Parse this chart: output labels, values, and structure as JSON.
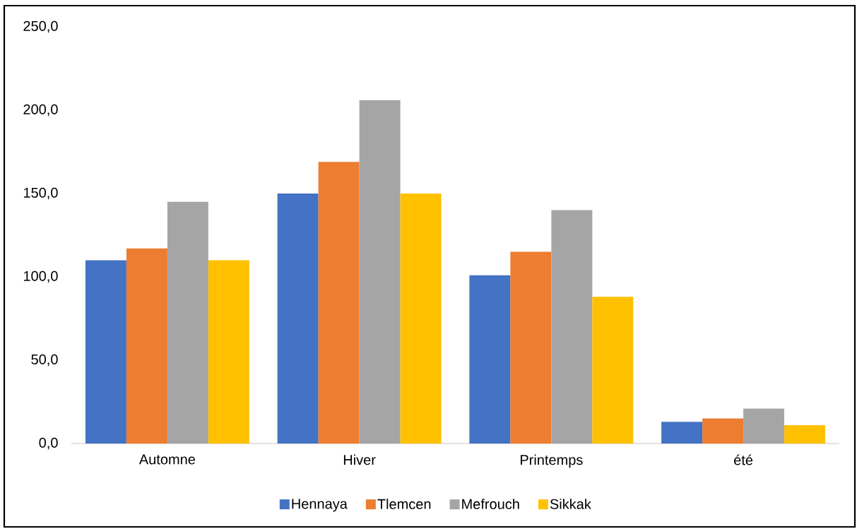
{
  "chart_data": {
    "type": "bar",
    "categories": [
      "Automne",
      "Hiver",
      "Printemps",
      "été"
    ],
    "series": [
      {
        "name": "Hennaya",
        "color": "#4472c4",
        "values": [
          110,
          150,
          101,
          13
        ]
      },
      {
        "name": "Tlemcen",
        "color": "#ed7d31",
        "values": [
          117,
          169,
          115,
          15
        ]
      },
      {
        "name": "Mefrouch",
        "color": "#a5a5a5",
        "values": [
          145,
          206,
          140,
          21
        ]
      },
      {
        "name": "Sikkak",
        "color": "#ffc000",
        "values": [
          110,
          150,
          88,
          11
        ]
      }
    ],
    "ylim": [
      0,
      250
    ],
    "yticks": [
      {
        "value": 0,
        "label": "0,0"
      },
      {
        "value": 50,
        "label": "50,0"
      },
      {
        "value": 100,
        "label": "100,0"
      },
      {
        "value": 150,
        "label": "150,0"
      },
      {
        "value": 200,
        "label": "200,0"
      },
      {
        "value": 250,
        "label": "250,0"
      }
    ],
    "legend": "bottom"
  }
}
